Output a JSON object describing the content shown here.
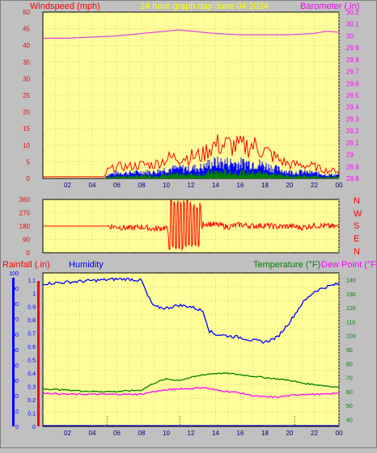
{
  "header": {
    "left_label": "Windspeed (mph)",
    "center_label": "24 hour graph day   June 04 2024",
    "right_label": "Barometer (.in)"
  },
  "bottom_header": {
    "rain_label": "Rainfall (.in)",
    "humidity_label": "Humidity",
    "temp_label": "Temperature (°F)",
    "dew_label": "Dew Point (°F)"
  },
  "direction_labels": [
    "N",
    "W",
    "S",
    "E",
    "N"
  ],
  "colors": {
    "plot_bg": "#ffff99",
    "grid": "#e6c9a0",
    "wind": "#ff0000",
    "gust_bar": "#0000ff",
    "avg_bar": "#008000",
    "barometer": "#e040e0",
    "humidity": "#0000ff",
    "temperature": "#008000",
    "dewpoint": "#ff00ff",
    "rain": "#0000ff",
    "direction": "#ff0000"
  },
  "chart_data": [
    {
      "id": "wind_baro",
      "type": "line",
      "title": "24 hour graph day   June 04 2024",
      "x_ticks": [
        "02",
        "04",
        "06",
        "08",
        "10",
        "12",
        "14",
        "16",
        "18",
        "20",
        "22",
        "00"
      ],
      "ylabel_left": "Windspeed (mph)",
      "ylim_left": [
        0,
        50
      ],
      "yticks_left": [
        "0",
        "5",
        "10",
        "15",
        "20",
        "25",
        "30",
        "35",
        "40",
        "45",
        "50"
      ],
      "ylabel_right": "Barometer (.in)",
      "ylim_right": [
        28.8,
        30.2
      ],
      "yticks_right": [
        "28.8",
        "28.9",
        "29",
        "29.1",
        "29.2",
        "29.3",
        "29.4",
        "29.5",
        "29.6",
        "29.7",
        "29.8",
        "29.9",
        "30",
        "30.1",
        "30.2"
      ],
      "series": [
        {
          "name": "Windspeed (mph)",
          "axis": "left",
          "x": [
            0,
            1,
            2,
            3,
            4,
            5,
            5.2,
            6,
            7,
            8,
            9,
            10,
            11,
            12,
            13,
            13.5,
            14,
            15,
            16,
            17,
            18,
            19,
            20,
            21,
            22,
            23,
            24
          ],
          "values": [
            0.5,
            0.5,
            0.5,
            0.5,
            0.5,
            0.5,
            2,
            3,
            3,
            3.5,
            3.5,
            5,
            5.5,
            5.5,
            6,
            8,
            8.5,
            8.5,
            8,
            8.5,
            7,
            5,
            3.5,
            3.5,
            3,
            2,
            2
          ]
        },
        {
          "name": "Barometer (.in)",
          "axis": "right",
          "x": [
            0,
            2,
            4,
            6,
            8,
            10,
            11,
            12,
            14,
            16,
            18,
            20,
            22,
            23,
            24
          ],
          "values": [
            29.98,
            29.98,
            29.99,
            30.0,
            30.02,
            30.04,
            30.05,
            30.04,
            30.02,
            30.01,
            30.01,
            30.01,
            30.02,
            30.04,
            30.03
          ]
        }
      ]
    },
    {
      "id": "direction",
      "type": "line",
      "x_ticks": [],
      "ylim": [
        0,
        360
      ],
      "yticks": [
        "0",
        "90",
        "180",
        "270",
        "360"
      ],
      "series": [
        {
          "name": "",
          "x": [
            0,
            5,
            6,
            7,
            8,
            9,
            10,
            10.5,
            11,
            11.5,
            12,
            12.5,
            13,
            14,
            15,
            16,
            17,
            18,
            19,
            20,
            21,
            22,
            23,
            24
          ],
          "values": [
            180,
            180,
            175,
            165,
            175,
            160,
            170,
            40,
            340,
            60,
            330,
            50,
            200,
            190,
            175,
            190,
            180,
            185,
            175,
            180,
            170,
            185,
            180,
            175
          ]
        }
      ]
    },
    {
      "id": "temp_hum",
      "type": "line",
      "x_ticks": [
        "02",
        "04",
        "06",
        "08",
        "10",
        "12",
        "14",
        "16",
        "18",
        "20",
        "22",
        "00"
      ],
      "ylim_humidity": [
        0,
        100
      ],
      "yticks_humidity": [
        "0",
        "10",
        "20",
        "30",
        "40",
        "50",
        "60",
        "70",
        "80",
        "90",
        "100"
      ],
      "ylim_rain": [
        0,
        1.15
      ],
      "yticks_rain": [
        "0",
        "0.1",
        "0.2",
        "0.3",
        "0.4",
        "0.5",
        "0.6",
        "0.7",
        "0.8",
        "0.9",
        "1",
        "1.1"
      ],
      "ylim_temp": [
        35,
        145
      ],
      "yticks_temp": [
        "40",
        "50",
        "60",
        "70",
        "80",
        "90",
        "100",
        "110",
        "120",
        "130",
        "140"
      ],
      "series": [
        {
          "name": "Humidity",
          "axis": "humidity",
          "x": [
            0,
            2,
            4,
            6,
            7,
            8,
            8.5,
            9,
            10,
            11,
            12,
            13,
            13.5,
            14,
            15,
            16,
            17,
            18,
            19,
            20,
            21,
            22,
            23,
            24
          ],
          "values": [
            93,
            94,
            95,
            96,
            96,
            95,
            85,
            78,
            77,
            79,
            78,
            75,
            62,
            60,
            59,
            58,
            56,
            55,
            58,
            68,
            80,
            88,
            91,
            93
          ]
        },
        {
          "name": "Temperature (°F)",
          "axis": "temp",
          "x": [
            0,
            2,
            4,
            6,
            8,
            9,
            10,
            11,
            12,
            13,
            14,
            15,
            16,
            17,
            18,
            19,
            20,
            21,
            22,
            23,
            24
          ],
          "values": [
            62,
            61,
            60,
            60,
            61,
            66,
            69,
            68,
            70,
            72,
            73,
            73,
            72,
            71,
            70,
            69,
            68,
            66,
            65,
            64,
            63
          ]
        },
        {
          "name": "Dew Point (°F)",
          "axis": "temp",
          "x": [
            0,
            2,
            4,
            6,
            8,
            9,
            10,
            11,
            12,
            13,
            14,
            15,
            16,
            17,
            18,
            19,
            20,
            21,
            22,
            23,
            24
          ],
          "values": [
            59,
            58,
            58,
            58,
            58,
            60,
            61,
            62,
            62,
            63,
            61,
            60,
            59,
            57,
            56,
            56,
            57,
            58,
            58,
            58,
            59
          ]
        },
        {
          "name": "Rainfall (.in)",
          "axis": "rain",
          "x": [
            0,
            24
          ],
          "values": [
            0,
            0
          ]
        }
      ],
      "markers_x": [
        5.2,
        11.1,
        20.4
      ]
    }
  ]
}
